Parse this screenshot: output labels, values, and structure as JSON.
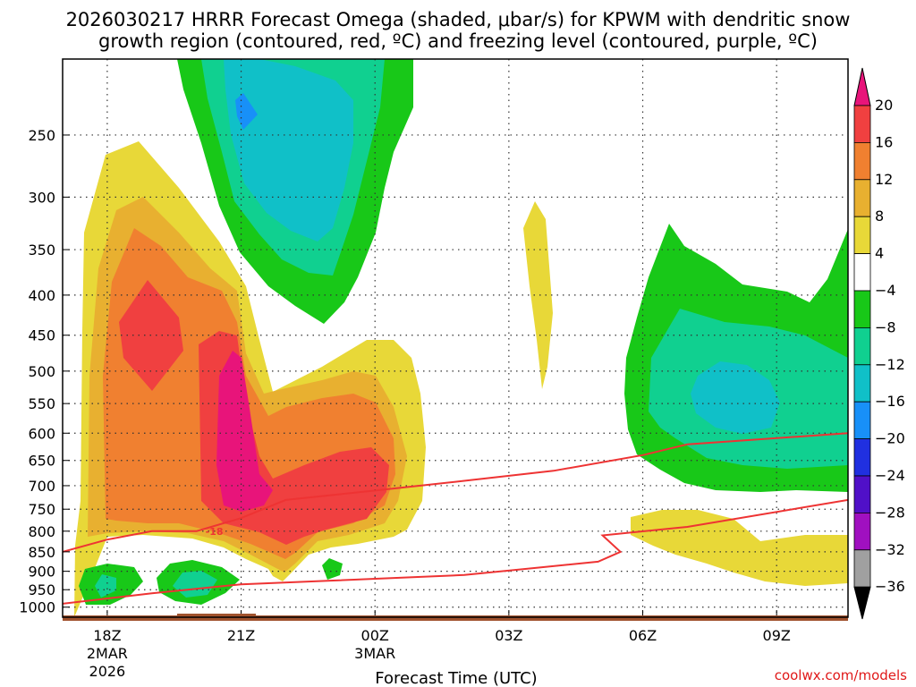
{
  "chart_data": {
    "type": "heatmap",
    "title_line1": "2026030217 HRRR Forecast Omega (shaded, μbar/s) for KPWM with dendritic snow",
    "title_line2": "growth region (contoured, red, ºC) and freezing level (contoured, purple, ºC)",
    "xlabel": "Forecast Time (UTC)",
    "credit": "coolwx.com/models",
    "x_ticks": [
      {
        "hour": 18,
        "label": "18Z",
        "sub1": "2MAR",
        "sub2": "2026"
      },
      {
        "hour": 21,
        "label": "21Z",
        "sub1": "",
        "sub2": ""
      },
      {
        "hour": 24,
        "label": "00Z",
        "sub1": "3MAR",
        "sub2": ""
      },
      {
        "hour": 27,
        "label": "03Z",
        "sub1": "",
        "sub2": ""
      },
      {
        "hour": 30,
        "label": "06Z",
        "sub1": "",
        "sub2": ""
      },
      {
        "hour": 33,
        "label": "09Z",
        "sub1": "",
        "sub2": ""
      }
    ],
    "x_range": [
      17,
      34.6
    ],
    "y_ticks": [
      250,
      300,
      350,
      400,
      450,
      500,
      550,
      600,
      650,
      700,
      750,
      800,
      850,
      900,
      950,
      1000
    ],
    "y_range_hpa": [
      200,
      1030
    ],
    "colorbar": {
      "labels": [
        "20",
        "16",
        "12",
        "8",
        "4",
        "−4",
        "−8",
        "−12",
        "−16",
        "−20",
        "−24",
        "−28",
        "−32",
        "−36"
      ],
      "colors": [
        "#e8147a",
        "#f04040",
        "#f08030",
        "#e8b030",
        "#e8d838",
        "#ffffff",
        "#18c818",
        "#10d090",
        "#10c0c8",
        "#1890f8",
        "#2030e0",
        "#5010c8",
        "#a010c0",
        "#a0a0a0",
        "#000000"
      ]
    },
    "contour_label": "-18",
    "series": [
      {
        "name": "freezing level",
        "points": [
          [
            17,
            990
          ],
          [
            19,
            960
          ],
          [
            21,
            935
          ],
          [
            23,
            925
          ],
          [
            26,
            910
          ],
          [
            29,
            875
          ],
          [
            29.5,
            850
          ],
          [
            29.1,
            810
          ],
          [
            31,
            790
          ],
          [
            34.6,
            730
          ]
        ]
      },
      {
        "name": "-18 C isotherm (lower)",
        "points": [
          [
            17,
            850
          ],
          [
            18,
            820
          ],
          [
            19,
            800
          ],
          [
            20,
            800
          ],
          [
            21,
            770
          ],
          [
            22,
            730
          ],
          [
            24,
            710
          ],
          [
            26,
            690
          ],
          [
            28,
            670
          ],
          [
            30,
            640
          ],
          [
            31,
            620
          ],
          [
            34.6,
            600
          ]
        ]
      }
    ]
  }
}
